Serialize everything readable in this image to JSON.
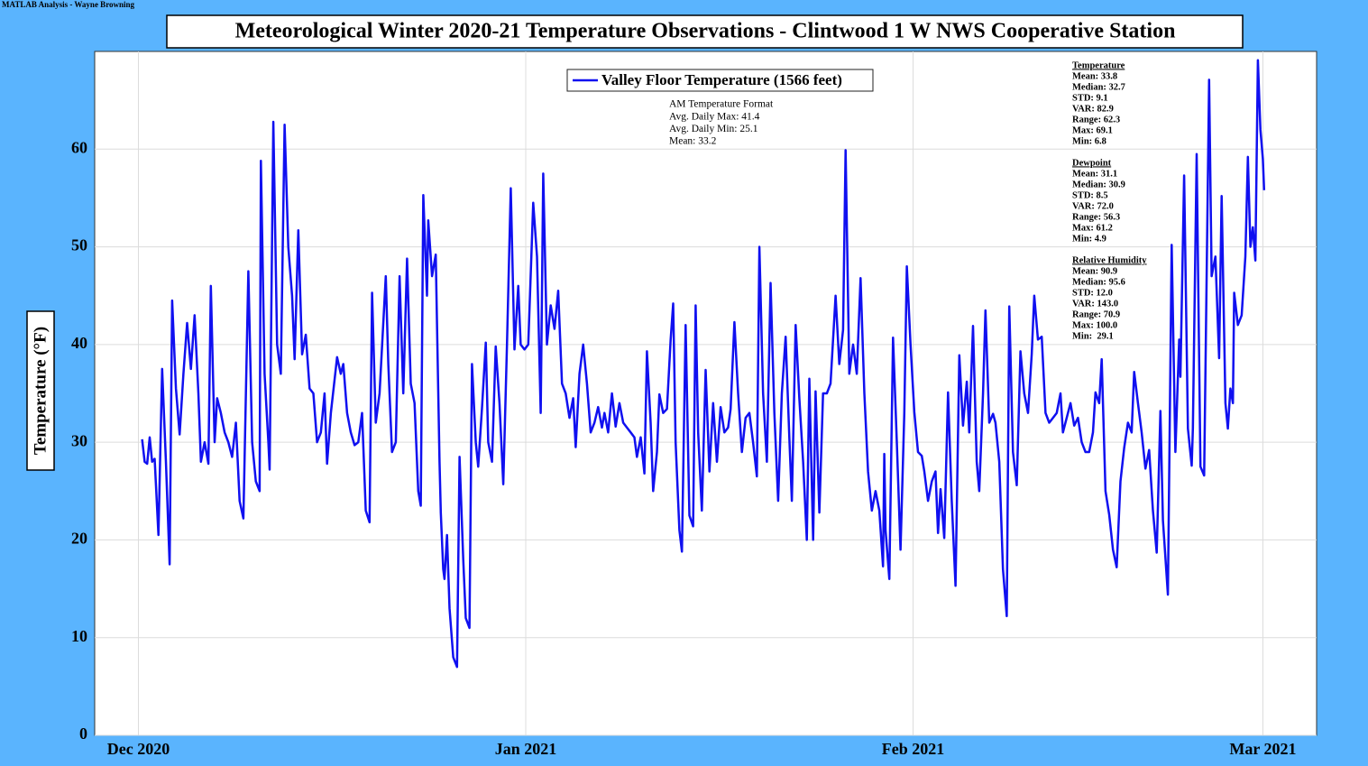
{
  "credit": "MATLAB Analysis - Wayne Browning",
  "chart_data": {
    "type": "line",
    "title": "Meteorological Winter 2020-21 Temperature Observations - Clintwood 1 W NWS Cooperative Station",
    "ylabel": "Temperature (°F)",
    "xlim": [
      -3.5,
      94.3
    ],
    "xticks": [
      {
        "value": 0,
        "label": "Dec 2020"
      },
      {
        "value": 31,
        "label": "Jan 2021"
      },
      {
        "value": 62,
        "label": "Feb 2021"
      },
      {
        "value": 90,
        "label": "Mar 2021"
      }
    ],
    "ylim": [
      0,
      70
    ],
    "yticks": [
      0,
      10,
      20,
      30,
      40,
      50,
      60
    ],
    "grid": true,
    "legend": "top",
    "x": [
      0.3,
      0.5,
      0.7,
      0.9,
      1.1,
      1.3,
      1.6,
      1.9,
      2.2,
      2.5,
      2.7,
      3.0,
      3.3,
      3.6,
      3.9,
      4.2,
      4.5,
      4.8,
      5.0,
      5.3,
      5.6,
      5.8,
      6.1,
      6.3,
      6.6,
      6.9,
      7.2,
      7.5,
      7.8,
      8.1,
      8.4,
      8.8,
      9.1,
      9.4,
      9.7,
      9.8,
      10.1,
      10.4,
      10.5,
      10.8,
      11.1,
      11.4,
      11.7,
      12.0,
      12.3,
      12.5,
      12.8,
      13.1,
      13.4,
      13.7,
      14.0,
      14.3,
      14.6,
      14.9,
      15.1,
      15.4,
      15.9,
      16.2,
      16.4,
      16.7,
      17.0,
      17.3,
      17.6,
      17.9,
      18.2,
      18.5,
      18.7,
      19.0,
      19.3,
      19.8,
      20.0,
      20.3,
      20.6,
      20.9,
      21.2,
      21.5,
      21.8,
      22.1,
      22.4,
      22.6,
      22.8,
      23.1,
      23.2,
      23.5,
      23.8,
      24.1,
      24.2,
      24.4,
      24.5,
      24.7,
      24.9,
      25.2,
      25.5,
      25.7,
      26.0,
      26.2,
      26.5,
      26.7,
      27.0,
      27.2,
      27.5,
      27.8,
      28.0,
      28.3,
      28.6,
      28.9,
      29.2,
      29.5,
      29.8,
      30.1,
      30.4,
      30.6,
      30.9,
      31.2,
      31.6,
      31.9,
      32.2,
      32.4,
      32.7,
      33.0,
      33.3,
      33.6,
      33.9,
      34.2,
      34.5,
      34.8,
      35.0,
      35.3,
      35.6,
      35.9,
      36.2,
      36.5,
      36.8,
      37.1,
      37.3,
      37.6,
      37.9,
      38.2,
      38.5,
      38.8,
      39.1,
      39.4,
      39.7,
      39.9,
      40.2,
      40.5,
      40.7,
      41.0,
      41.2,
      41.5,
      41.7,
      42.0,
      42.3,
      42.6,
      42.8,
      43.0,
      43.3,
      43.5,
      43.8,
      44.1,
      44.4,
      44.6,
      44.8,
      45.1,
      45.4,
      45.7,
      46.0,
      46.3,
      46.6,
      46.9,
      47.2,
      47.4,
      47.7,
      48.0,
      48.3,
      48.6,
      48.9,
      49.2,
      49.5,
      49.7,
      50.0,
      50.3,
      50.6,
      50.9,
      51.2,
      51.5,
      51.8,
      52.1,
      52.3,
      52.6,
      52.9,
      53.2,
      53.5,
      53.7,
      54.0,
      54.2,
      54.5,
      54.8,
      55.1,
      55.4,
      55.8,
      56.1,
      56.4,
      56.6,
      56.9,
      57.2,
      57.5,
      57.8,
      58.1,
      58.4,
      58.7,
      59.0,
      59.3,
      59.6,
      59.7,
      59.8,
      60.1,
      60.4,
      60.7,
      61.0,
      61.3,
      61.5,
      61.8,
      62.1,
      62.4,
      62.7,
      62.9,
      63.2,
      63.5,
      63.8,
      64.0,
      64.2,
      64.5,
      64.8,
      65.1,
      65.4,
      65.7,
      66.0,
      66.3,
      66.5,
      66.8,
      67.1,
      67.3,
      67.6,
      67.8,
      68.1,
      68.4,
      68.6,
      68.9,
      69.2,
      69.5,
      69.7,
      70.0,
      70.3,
      70.6,
      70.9,
      71.2,
      71.5,
      71.7,
      72.0,
      72.3,
      72.6,
      72.9,
      73.2,
      73.5,
      73.8,
      74.0,
      74.3,
      74.6,
      74.9,
      75.2,
      75.5,
      75.8,
      76.1,
      76.4,
      76.6,
      76.9,
      77.1,
      77.4,
      77.7,
      78.0,
      78.3,
      78.6,
      78.9,
      79.2,
      79.5,
      79.7,
      80.0,
      80.3,
      80.6,
      80.9,
      81.2,
      81.5,
      81.8,
      82.0,
      82.4,
      82.7,
      83.0,
      83.3,
      83.4,
      83.7,
      84.0,
      84.3,
      84.4,
      84.7,
      85.0,
      85.3,
      85.7,
      85.9,
      86.2,
      86.5,
      86.7,
      87.0,
      87.2,
      87.4,
      87.6,
      87.7,
      88.0,
      88.3,
      88.6,
      88.8,
      89.0,
      89.2,
      89.4,
      89.6,
      89.8,
      90.0,
      90.1
    ],
    "series": [
      {
        "name": "Valley Floor Temperature (1566 feet)",
        "color": "#1010f0",
        "values": [
          30.3,
          28,
          27.8,
          30.5,
          28,
          28.3,
          20.5,
          37.5,
          28,
          17.5,
          44.5,
          35.5,
          30.8,
          37,
          42.2,
          37.5,
          43,
          35,
          28,
          30,
          27.8,
          46,
          30,
          34.5,
          33,
          31,
          30,
          28.5,
          32,
          24,
          22.2,
          47.5,
          30,
          26,
          25,
          58.8,
          37,
          30,
          27.2,
          62.8,
          40,
          37,
          62.5,
          50,
          45,
          38.5,
          51.7,
          39,
          41,
          35.5,
          35,
          30,
          31,
          35,
          27.8,
          33,
          38.7,
          37,
          38,
          33,
          31,
          29.7,
          30,
          33,
          23,
          21.8,
          45.3,
          32,
          35,
          47,
          38,
          29,
          30,
          47,
          35,
          48.8,
          36,
          34,
          25,
          23.5,
          55.3,
          45,
          52.7,
          47,
          49.2,
          28,
          22.8,
          17,
          16,
          20.5,
          13,
          8,
          7,
          28.5,
          18,
          12,
          11,
          38,
          30,
          27.5,
          33.5,
          40.2,
          30,
          28,
          39.8,
          34,
          25.7,
          40,
          56,
          39.5,
          46,
          40,
          39.5,
          40,
          54.5,
          49,
          33,
          57.5,
          40,
          44,
          41.6,
          45.5,
          36,
          35,
          32.5,
          34.5,
          29.5,
          37,
          40,
          36,
          31,
          32,
          33.6,
          31.5,
          33,
          31,
          35,
          31.6,
          34,
          32,
          31.5,
          31,
          30.5,
          28.5,
          30.5,
          26.8,
          39.3,
          32,
          25,
          29,
          34.9,
          33,
          33.4,
          40.5,
          44.2,
          30,
          21,
          18.8,
          42,
          22.5,
          21.4,
          44,
          31,
          23,
          37.4,
          27,
          34,
          28,
          33.6,
          31,
          31.5,
          33.4,
          42.3,
          35,
          29,
          32.5,
          33,
          30,
          26.5,
          50,
          35,
          28,
          46.3,
          33,
          24,
          35,
          40.8,
          30.5,
          24,
          42,
          34.5,
          28,
          20,
          36.5,
          20,
          35.2,
          22.8,
          35,
          35,
          36,
          45,
          38,
          41.5,
          59.9,
          37,
          40,
          37,
          46.8,
          35,
          27,
          23,
          25,
          23,
          17.3,
          28.8,
          21,
          16,
          40.7,
          30,
          19,
          33,
          48,
          40,
          33.1,
          29,
          28.6,
          27,
          24,
          26,
          27,
          20.7,
          25.2,
          20.2,
          35.1,
          24,
          15.3,
          38.9,
          31.7,
          36.2,
          31,
          41.9,
          28,
          25,
          35,
          43.5,
          32,
          32.9,
          32,
          28,
          17,
          12.2,
          43.9,
          29,
          25.6,
          39.3,
          35,
          33,
          39,
          45,
          40.5,
          40.8,
          33,
          32,
          32.5,
          33,
          35,
          31,
          32.5,
          34,
          31.7,
          32.5,
          30,
          29,
          29,
          31,
          35.1,
          34,
          38.5,
          25,
          22.6,
          19,
          17.2,
          26,
          29.4,
          32,
          31,
          37.2,
          34,
          31,
          27.3,
          29.2,
          23,
          18.7,
          33.2,
          22,
          14.4,
          50.2,
          29,
          40.5,
          36.7,
          57.3,
          31.4,
          27.6,
          31.4,
          59.5,
          27.5,
          26.6,
          67.1,
          47,
          49,
          38.6,
          55.2,
          34,
          31.4,
          35.5,
          34,
          45.3,
          42,
          43,
          49,
          59.2,
          50,
          52,
          48.6,
          69.1,
          62,
          59,
          55.8
        ]
      }
    ],
    "annotation": {
      "title": "AM Temperature Format",
      "lines": [
        "Avg. Daily Max: 41.4",
        "Avg. Daily Min: 25.1",
        "Mean: 33.2"
      ]
    },
    "stats": [
      {
        "title": "Temperature",
        "lines": [
          "Mean: 33.8",
          "Median: 32.7",
          "STD: 9.1",
          "VAR: 82.9",
          "Range: 62.3",
          "Max: 69.1",
          "Min: 6.8"
        ]
      },
      {
        "title": "Dewpoint",
        "lines": [
          "Mean: 31.1",
          "Median: 30.9",
          "STD: 8.5",
          "VAR: 72.0",
          "Range: 56.3",
          "Max: 61.2",
          "Min: 4.9"
        ]
      },
      {
        "title": "Relative Humidity",
        "lines": [
          "Mean: 90.9",
          "Median: 95.6",
          "STD: 12.0",
          "VAR: 143.0",
          "Range: 70.9",
          "Max: 100.0",
          "Min:  29.1"
        ]
      }
    ]
  }
}
